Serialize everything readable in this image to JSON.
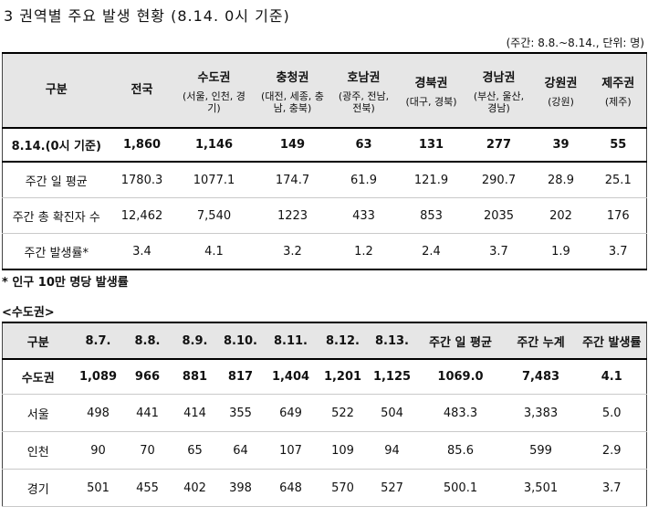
{
  "title": "3 권역별 주요 발생 현황 (8.14. 0시 기준)",
  "unit_note": "(주간: 8.8.~8.14., 단위: 명)",
  "table1": {
    "header": [
      {
        "name": "구분",
        "sub": ""
      },
      {
        "name": "전국",
        "sub": ""
      },
      {
        "name": "수도권",
        "sub": "(서울, 인천, 경기)"
      },
      {
        "name": "충청권",
        "sub": "(대전, 세종, 충남, 충북)"
      },
      {
        "name": "호남권",
        "sub": "(광주, 전남, 전북)"
      },
      {
        "name": "경북권",
        "sub": "(대구, 경북)"
      },
      {
        "name": "경남권",
        "sub": "(부산, 울산, 경남)"
      },
      {
        "name": "강원권",
        "sub": "(강원)"
      },
      {
        "name": "제주권",
        "sub": "(제주)"
      }
    ],
    "rows": [
      [
        "8.14.(0시 기준)",
        "1,860",
        "1,146",
        "149",
        "63",
        "131",
        "277",
        "39",
        "55"
      ],
      [
        "주간 일 평균",
        "1780.3",
        "1077.1",
        "174.7",
        "61.9",
        "121.9",
        "290.7",
        "28.9",
        "25.1"
      ],
      [
        "주간 총 확진자 수",
        "12,462",
        "7,540",
        "1223",
        "433",
        "853",
        "2035",
        "202",
        "176"
      ],
      [
        "주간 발생률*",
        "3.4",
        "4.1",
        "3.2",
        "1.2",
        "2.4",
        "3.7",
        "1.9",
        "3.7"
      ]
    ]
  },
  "footnote": "* 인구 10만 명당 발생률",
  "section_label": "<수도권>",
  "table2": {
    "header": [
      "구분",
      "8.7.",
      "8.8.",
      "8.9.",
      "8.10.",
      "8.11.",
      "8.12.",
      "8.13.",
      "주간 일 평균",
      "주간 누계",
      "주간 발생률"
    ],
    "rows": [
      [
        "수도권",
        "1,089",
        "966",
        "881",
        "817",
        "1,404",
        "1,201",
        "1,125",
        "1069.0",
        "7,483",
        "4.1"
      ],
      [
        "서울",
        "498",
        "441",
        "414",
        "355",
        "649",
        "522",
        "504",
        "483.3",
        "3,383",
        "5.0"
      ],
      [
        "인천",
        "90",
        "70",
        "65",
        "64",
        "107",
        "109",
        "94",
        "85.6",
        "599",
        "2.9"
      ],
      [
        "경기",
        "501",
        "455",
        "402",
        "398",
        "648",
        "570",
        "527",
        "500.1",
        "3,501",
        "3.7"
      ]
    ]
  }
}
